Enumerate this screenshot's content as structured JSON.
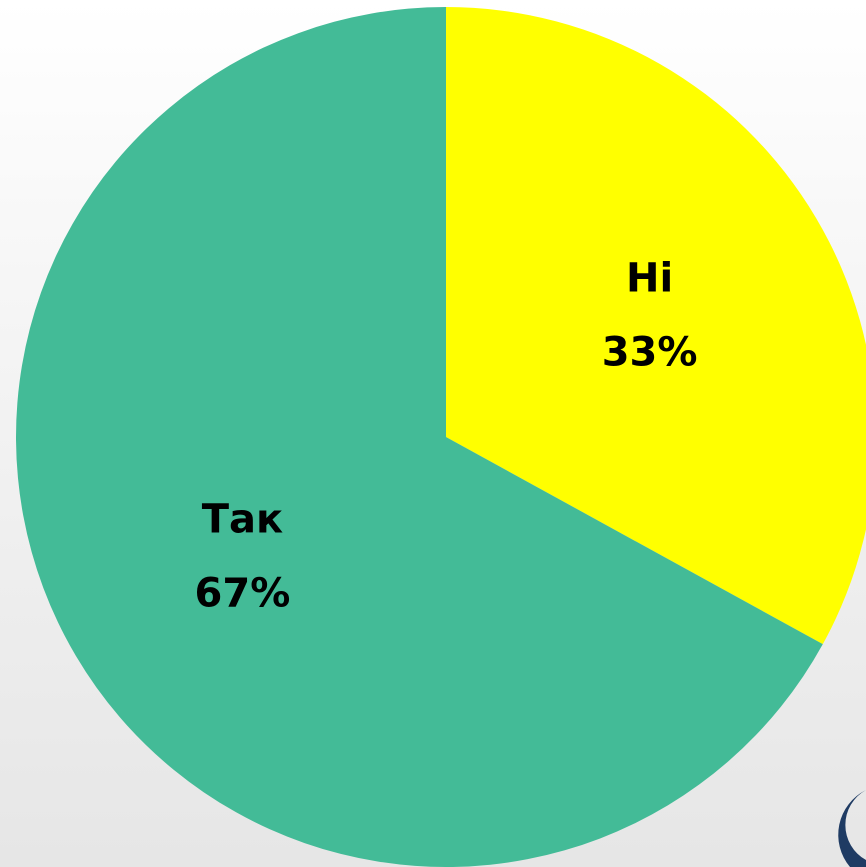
{
  "chart_data": {
    "type": "pie",
    "categories": [
      "Ні",
      "Так"
    ],
    "values": [
      33,
      67
    ],
    "value_labels": [
      "33%",
      "67%"
    ],
    "colors": [
      "#ffff00",
      "#43bb97"
    ],
    "start_angle": 0,
    "direction": "clockwise"
  }
}
